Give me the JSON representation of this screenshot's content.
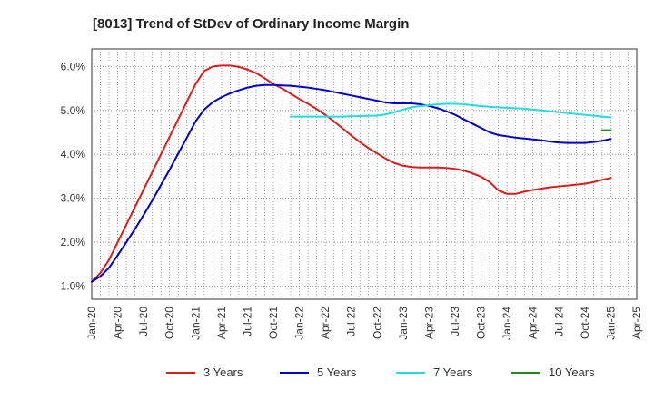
{
  "chart_data": {
    "type": "line",
    "title": "[8013]  Trend of StDev of Ordinary Income Margin",
    "xlabel": "",
    "ylabel": "",
    "x_ticks": [
      "Jan-20",
      "Apr-20",
      "Jul-20",
      "Oct-20",
      "Jan-21",
      "Apr-21",
      "Jul-21",
      "Oct-21",
      "Jan-22",
      "Apr-22",
      "Jul-22",
      "Oct-22",
      "Jan-23",
      "Apr-23",
      "Jul-23",
      "Oct-23",
      "Jan-24",
      "Apr-24",
      "Jul-24",
      "Oct-24",
      "Jan-25",
      "Apr-25"
    ],
    "y_ticks": [
      "1.0%",
      "2.0%",
      "3.0%",
      "4.0%",
      "5.0%",
      "6.0%"
    ],
    "ylim": [
      0.7,
      6.4
    ],
    "grid": true,
    "legend_position": "bottom",
    "series": [
      {
        "name": "3 Years",
        "color": "#dd1c1c",
        "points": [
          [
            "Jan-20",
            1.1
          ],
          [
            "Feb-20",
            1.3
          ],
          [
            "Mar-20",
            1.6
          ],
          [
            "Apr-20",
            2.0
          ],
          [
            "May-20",
            2.4
          ],
          [
            "Jun-20",
            2.8
          ],
          [
            "Jul-20",
            3.2
          ],
          [
            "Aug-20",
            3.6
          ],
          [
            "Sep-20",
            4.0
          ],
          [
            "Oct-20",
            4.4
          ],
          [
            "Nov-20",
            4.8
          ],
          [
            "Dec-20",
            5.2
          ],
          [
            "Jan-21",
            5.6
          ],
          [
            "Feb-21",
            5.9
          ],
          [
            "Mar-21",
            6.0
          ],
          [
            "Apr-21",
            6.02
          ],
          [
            "May-21",
            6.02
          ],
          [
            "Jun-21",
            5.99
          ],
          [
            "Jul-21",
            5.93
          ],
          [
            "Aug-21",
            5.85
          ],
          [
            "Sep-21",
            5.73
          ],
          [
            "Oct-21",
            5.6
          ],
          [
            "Nov-21",
            5.5
          ],
          [
            "Dec-21",
            5.38
          ],
          [
            "Jan-22",
            5.26
          ],
          [
            "Feb-22",
            5.15
          ],
          [
            "Mar-22",
            5.03
          ],
          [
            "Apr-22",
            4.9
          ],
          [
            "May-22",
            4.75
          ],
          [
            "Jun-22",
            4.59
          ],
          [
            "Jul-22",
            4.43
          ],
          [
            "Aug-22",
            4.28
          ],
          [
            "Sep-22",
            4.14
          ],
          [
            "Oct-22",
            4.02
          ],
          [
            "Nov-22",
            3.9
          ],
          [
            "Dec-22",
            3.8
          ],
          [
            "Jan-23",
            3.74
          ],
          [
            "Feb-23",
            3.71
          ],
          [
            "Mar-23",
            3.7
          ],
          [
            "Apr-23",
            3.7
          ],
          [
            "May-23",
            3.7
          ],
          [
            "Jun-23",
            3.69
          ],
          [
            "Jul-23",
            3.67
          ],
          [
            "Aug-23",
            3.63
          ],
          [
            "Sep-23",
            3.57
          ],
          [
            "Oct-23",
            3.49
          ],
          [
            "Nov-23",
            3.37
          ],
          [
            "Dec-23",
            3.18
          ],
          [
            "Jan-24",
            3.1
          ],
          [
            "Feb-24",
            3.1
          ],
          [
            "Mar-24",
            3.15
          ],
          [
            "Apr-24",
            3.19
          ],
          [
            "May-24",
            3.22
          ],
          [
            "Jun-24",
            3.25
          ],
          [
            "Jul-24",
            3.27
          ],
          [
            "Aug-24",
            3.29
          ],
          [
            "Sep-24",
            3.31
          ],
          [
            "Oct-24",
            3.33
          ],
          [
            "Nov-24",
            3.37
          ],
          [
            "Dec-24",
            3.42
          ],
          [
            "Jan-25",
            3.46
          ]
        ]
      },
      {
        "name": "5 Years",
        "color": "#0000cc",
        "points": [
          [
            "Jan-20",
            1.1
          ],
          [
            "Feb-20",
            1.22
          ],
          [
            "Mar-20",
            1.42
          ],
          [
            "Apr-20",
            1.7
          ],
          [
            "May-20",
            2.0
          ],
          [
            "Jun-20",
            2.3
          ],
          [
            "Jul-20",
            2.62
          ],
          [
            "Aug-20",
            2.95
          ],
          [
            "Sep-20",
            3.3
          ],
          [
            "Oct-20",
            3.65
          ],
          [
            "Nov-20",
            4.02
          ],
          [
            "Dec-20",
            4.38
          ],
          [
            "Jan-21",
            4.75
          ],
          [
            "Feb-21",
            5.02
          ],
          [
            "Mar-21",
            5.19
          ],
          [
            "Apr-21",
            5.3
          ],
          [
            "May-21",
            5.39
          ],
          [
            "Jun-21",
            5.46
          ],
          [
            "Jul-21",
            5.52
          ],
          [
            "Aug-21",
            5.56
          ],
          [
            "Sep-21",
            5.58
          ],
          [
            "Oct-21",
            5.58
          ],
          [
            "Nov-21",
            5.57
          ],
          [
            "Dec-21",
            5.56
          ],
          [
            "Jan-22",
            5.54
          ],
          [
            "Feb-22",
            5.52
          ],
          [
            "Mar-22",
            5.49
          ],
          [
            "Apr-22",
            5.46
          ],
          [
            "May-22",
            5.42
          ],
          [
            "Jun-22",
            5.38
          ],
          [
            "Jul-22",
            5.34
          ],
          [
            "Aug-22",
            5.3
          ],
          [
            "Sep-22",
            5.26
          ],
          [
            "Oct-22",
            5.22
          ],
          [
            "Nov-22",
            5.18
          ],
          [
            "Dec-22",
            5.16
          ],
          [
            "Jan-23",
            5.16
          ],
          [
            "Feb-23",
            5.16
          ],
          [
            "Mar-23",
            5.14
          ],
          [
            "Apr-23",
            5.1
          ],
          [
            "May-23",
            5.05
          ],
          [
            "Jun-23",
            4.98
          ],
          [
            "Jul-23",
            4.9
          ],
          [
            "Aug-23",
            4.8
          ],
          [
            "Sep-23",
            4.7
          ],
          [
            "Oct-23",
            4.6
          ],
          [
            "Nov-23",
            4.5
          ],
          [
            "Dec-23",
            4.44
          ],
          [
            "Jan-24",
            4.41
          ],
          [
            "Feb-24",
            4.38
          ],
          [
            "Mar-24",
            4.36
          ],
          [
            "Apr-24",
            4.34
          ],
          [
            "May-24",
            4.32
          ],
          [
            "Jun-24",
            4.29
          ],
          [
            "Jul-24",
            4.27
          ],
          [
            "Aug-24",
            4.26
          ],
          [
            "Sep-24",
            4.26
          ],
          [
            "Oct-24",
            4.26
          ],
          [
            "Nov-24",
            4.28
          ],
          [
            "Dec-24",
            4.31
          ],
          [
            "Jan-25",
            4.35
          ]
        ]
      },
      {
        "name": "7 Years",
        "color": "#22dddd",
        "points": [
          [
            "Dec-21",
            4.86
          ],
          [
            "Jan-22",
            4.86
          ],
          [
            "Feb-22",
            4.86
          ],
          [
            "Mar-22",
            4.86
          ],
          [
            "Apr-22",
            4.86
          ],
          [
            "May-22",
            4.86
          ],
          [
            "Jun-22",
            4.86
          ],
          [
            "Jul-22",
            4.87
          ],
          [
            "Aug-22",
            4.87
          ],
          [
            "Sep-22",
            4.88
          ],
          [
            "Oct-22",
            4.88
          ],
          [
            "Nov-22",
            4.91
          ],
          [
            "Dec-22",
            4.96
          ],
          [
            "Jan-23",
            5.02
          ],
          [
            "Feb-23",
            5.07
          ],
          [
            "Mar-23",
            5.1
          ],
          [
            "Apr-23",
            5.12
          ],
          [
            "May-23",
            5.14
          ],
          [
            "Jun-23",
            5.15
          ],
          [
            "Jul-23",
            5.15
          ],
          [
            "Aug-23",
            5.14
          ],
          [
            "Sep-23",
            5.12
          ],
          [
            "Oct-23",
            5.1
          ],
          [
            "Nov-23",
            5.08
          ],
          [
            "Dec-23",
            5.07
          ],
          [
            "Jan-24",
            5.06
          ],
          [
            "Feb-24",
            5.05
          ],
          [
            "Mar-24",
            5.04
          ],
          [
            "Apr-24",
            5.02
          ],
          [
            "May-24",
            5.0
          ],
          [
            "Jun-24",
            4.98
          ],
          [
            "Jul-24",
            4.96
          ],
          [
            "Aug-24",
            4.94
          ],
          [
            "Sep-24",
            4.92
          ],
          [
            "Oct-24",
            4.9
          ],
          [
            "Nov-24",
            4.88
          ],
          [
            "Dec-24",
            4.86
          ],
          [
            "Jan-25",
            4.84
          ]
        ]
      },
      {
        "name": "10 Years",
        "color": "#228822",
        "points": [
          [
            "Dec-24",
            4.55
          ],
          [
            "Jan-25",
            4.55
          ]
        ]
      }
    ]
  }
}
